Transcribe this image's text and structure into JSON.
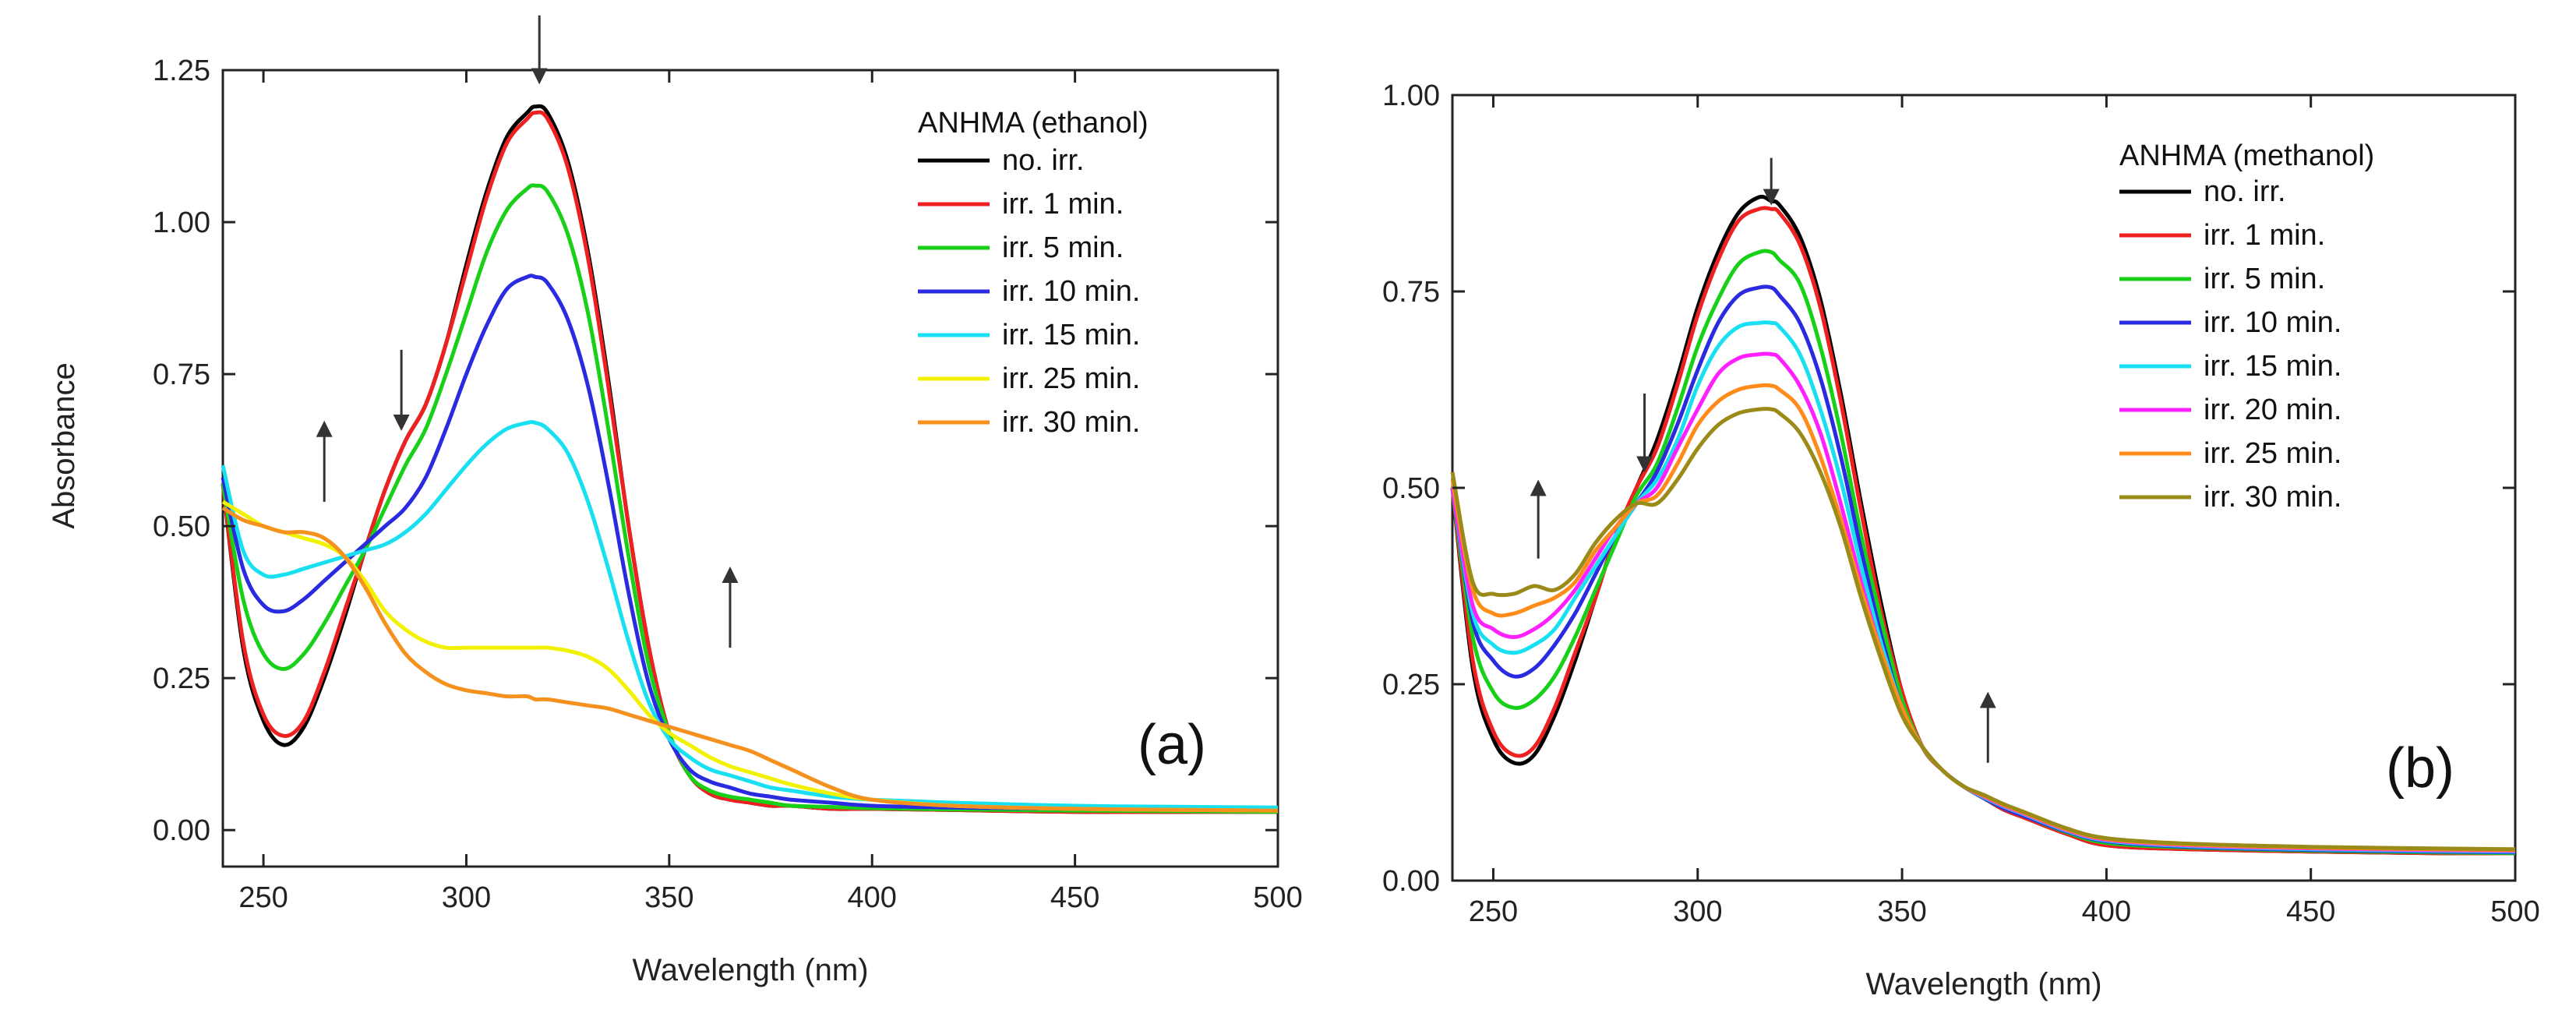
{
  "colors": {
    "no_irr": "#000000",
    "irr_1": "#ee2020",
    "irr_5": "#18d018",
    "irr_10": "#2a2ae0",
    "irr_15": "#18e0f0",
    "irr_20": "#ff20ff",
    "irr_25_a": "#f2f200",
    "irr_25_b": "#ff8c1a",
    "irr_30_a": "#f5911e",
    "irr_30_b": "#9a8a18",
    "arrow": "#333333"
  },
  "chart_data": [
    {
      "type": "line",
      "panel_label": "(a)",
      "legend_title": "ANHMA (ethanol)",
      "xlabel": "Wavelength (nm)",
      "ylabel": "Absorbance",
      "xlim": [
        240,
        500
      ],
      "ylim": [
        -0.06,
        1.25
      ],
      "xticks": [
        250,
        300,
        350,
        400,
        450,
        500
      ],
      "yticks": [
        0.0,
        0.25,
        0.5,
        0.75,
        1.0,
        1.25
      ],
      "ytick_labels": [
        "0.00",
        "0.25",
        "0.50",
        "0.75",
        "1.00",
        "1.25"
      ],
      "x": [
        240,
        245,
        250,
        255,
        260,
        265,
        270,
        275,
        280,
        285,
        290,
        295,
        300,
        305,
        310,
        315,
        317,
        320,
        325,
        330,
        335,
        340,
        345,
        350,
        355,
        360,
        365,
        370,
        375,
        380,
        390,
        400,
        420,
        450,
        480,
        500
      ],
      "series": [
        {
          "name": "no. irr.",
          "color_key": "no_irr",
          "values": [
            0.57,
            0.3,
            0.18,
            0.14,
            0.17,
            0.25,
            0.35,
            0.46,
            0.56,
            0.64,
            0.7,
            0.8,
            0.93,
            1.05,
            1.14,
            1.18,
            1.19,
            1.18,
            1.1,
            0.95,
            0.74,
            0.5,
            0.3,
            0.16,
            0.09,
            0.06,
            0.05,
            0.045,
            0.04,
            0.04,
            0.035,
            0.035,
            0.033,
            0.03,
            0.03,
            0.03
          ]
        },
        {
          "name": "irr. 1 min.",
          "color_key": "irr_1",
          "values": [
            0.57,
            0.31,
            0.19,
            0.155,
            0.18,
            0.26,
            0.36,
            0.46,
            0.56,
            0.64,
            0.7,
            0.8,
            0.92,
            1.04,
            1.13,
            1.17,
            1.18,
            1.17,
            1.09,
            0.94,
            0.73,
            0.5,
            0.3,
            0.16,
            0.09,
            0.06,
            0.05,
            0.045,
            0.04,
            0.04,
            0.035,
            0.035,
            0.033,
            0.03,
            0.03,
            0.03
          ]
        },
        {
          "name": "irr. 5 min.",
          "color_key": "irr_5",
          "values": [
            0.57,
            0.38,
            0.29,
            0.265,
            0.29,
            0.34,
            0.4,
            0.46,
            0.53,
            0.6,
            0.66,
            0.75,
            0.85,
            0.95,
            1.02,
            1.055,
            1.06,
            1.05,
            0.98,
            0.85,
            0.66,
            0.45,
            0.27,
            0.16,
            0.09,
            0.065,
            0.055,
            0.05,
            0.045,
            0.04,
            0.038,
            0.036,
            0.034,
            0.032,
            0.031,
            0.03
          ]
        },
        {
          "name": "irr. 10 min.",
          "color_key": "irr_10",
          "values": [
            0.58,
            0.43,
            0.37,
            0.36,
            0.38,
            0.41,
            0.44,
            0.47,
            0.5,
            0.53,
            0.58,
            0.66,
            0.75,
            0.83,
            0.89,
            0.91,
            0.91,
            0.9,
            0.84,
            0.73,
            0.57,
            0.39,
            0.24,
            0.15,
            0.1,
            0.08,
            0.07,
            0.06,
            0.055,
            0.05,
            0.045,
            0.04,
            0.037,
            0.035,
            0.033,
            0.033
          ]
        },
        {
          "name": "irr. 15 min.",
          "color_key": "irr_15",
          "values": [
            0.6,
            0.46,
            0.42,
            0.42,
            0.43,
            0.44,
            0.45,
            0.46,
            0.47,
            0.49,
            0.52,
            0.56,
            0.6,
            0.635,
            0.66,
            0.67,
            0.67,
            0.66,
            0.62,
            0.54,
            0.43,
            0.31,
            0.21,
            0.15,
            0.12,
            0.1,
            0.09,
            0.08,
            0.07,
            0.065,
            0.055,
            0.05,
            0.045,
            0.04,
            0.038,
            0.037
          ]
        },
        {
          "name": "irr. 25 min.",
          "color_key": "irr_25_a",
          "values": [
            0.54,
            0.52,
            0.5,
            0.49,
            0.48,
            0.47,
            0.45,
            0.41,
            0.36,
            0.33,
            0.31,
            0.3,
            0.3,
            0.3,
            0.3,
            0.3,
            0.3,
            0.3,
            0.295,
            0.285,
            0.265,
            0.23,
            0.19,
            0.16,
            0.14,
            0.12,
            0.105,
            0.095,
            0.085,
            0.075,
            0.06,
            0.05,
            0.04,
            0.035,
            0.033,
            0.032
          ]
        },
        {
          "name": "irr. 30 min.",
          "color_key": "irr_30_a",
          "values": [
            0.53,
            0.51,
            0.5,
            0.49,
            0.49,
            0.48,
            0.45,
            0.4,
            0.34,
            0.29,
            0.26,
            0.24,
            0.23,
            0.225,
            0.22,
            0.22,
            0.215,
            0.215,
            0.21,
            0.205,
            0.2,
            0.19,
            0.18,
            0.17,
            0.16,
            0.15,
            0.14,
            0.13,
            0.115,
            0.1,
            0.07,
            0.05,
            0.04,
            0.035,
            0.033,
            0.032
          ]
        }
      ],
      "arrows": [
        {
          "x": 318,
          "y_from": 1.34,
          "y_to": 1.24,
          "dir": "down"
        },
        {
          "x": 284,
          "y_from": 0.79,
          "y_to": 0.67,
          "dir": "down"
        },
        {
          "x": 265,
          "y_from": 0.54,
          "y_to": 0.66,
          "dir": "up"
        },
        {
          "x": 365,
          "y_from": 0.3,
          "y_to": 0.42,
          "dir": "up"
        }
      ]
    },
    {
      "type": "line",
      "panel_label": "(b)",
      "legend_title": "ANHMA (methanol)",
      "xlabel": "Wavelength (nm)",
      "ylabel": "",
      "xlim": [
        240,
        500
      ],
      "ylim": [
        0.0,
        1.0
      ],
      "xticks": [
        250,
        300,
        350,
        400,
        450,
        500
      ],
      "yticks": [
        0.0,
        0.25,
        0.5,
        0.75,
        1.0
      ],
      "ytick_labels": [
        "0.00",
        "0.25",
        "0.50",
        "0.75",
        "1.00"
      ],
      "x": [
        240,
        245,
        250,
        255,
        260,
        265,
        270,
        275,
        280,
        285,
        290,
        295,
        300,
        305,
        310,
        315,
        318,
        320,
        325,
        330,
        335,
        340,
        345,
        350,
        355,
        360,
        365,
        370,
        375,
        380,
        390,
        400,
        420,
        450,
        480,
        500
      ],
      "series": [
        {
          "name": "no. irr.",
          "color_key": "no_irr",
          "values": [
            0.5,
            0.27,
            0.18,
            0.15,
            0.16,
            0.21,
            0.28,
            0.36,
            0.44,
            0.5,
            0.56,
            0.64,
            0.73,
            0.8,
            0.85,
            0.87,
            0.865,
            0.86,
            0.82,
            0.74,
            0.62,
            0.48,
            0.35,
            0.24,
            0.17,
            0.14,
            0.12,
            0.105,
            0.09,
            0.08,
            0.06,
            0.045,
            0.04,
            0.037,
            0.035,
            0.035
          ]
        },
        {
          "name": "irr. 1 min.",
          "color_key": "irr_1",
          "values": [
            0.5,
            0.28,
            0.19,
            0.16,
            0.17,
            0.22,
            0.29,
            0.36,
            0.44,
            0.5,
            0.55,
            0.63,
            0.72,
            0.79,
            0.84,
            0.855,
            0.855,
            0.85,
            0.81,
            0.73,
            0.61,
            0.47,
            0.34,
            0.24,
            0.17,
            0.14,
            0.12,
            0.105,
            0.09,
            0.08,
            0.06,
            0.045,
            0.04,
            0.037,
            0.035,
            0.035
          ]
        },
        {
          "name": "irr. 5 min.",
          "color_key": "irr_5",
          "values": [
            0.5,
            0.31,
            0.24,
            0.22,
            0.23,
            0.26,
            0.31,
            0.37,
            0.43,
            0.49,
            0.53,
            0.6,
            0.68,
            0.74,
            0.785,
            0.8,
            0.8,
            0.79,
            0.76,
            0.68,
            0.57,
            0.44,
            0.33,
            0.23,
            0.17,
            0.14,
            0.12,
            0.105,
            0.092,
            0.082,
            0.062,
            0.048,
            0.042,
            0.038,
            0.036,
            0.035
          ]
        },
        {
          "name": "irr. 10 min.",
          "color_key": "irr_10",
          "values": [
            0.5,
            0.33,
            0.28,
            0.26,
            0.27,
            0.3,
            0.34,
            0.39,
            0.44,
            0.48,
            0.52,
            0.58,
            0.65,
            0.71,
            0.745,
            0.755,
            0.755,
            0.745,
            0.71,
            0.64,
            0.54,
            0.42,
            0.31,
            0.22,
            0.17,
            0.14,
            0.12,
            0.105,
            0.092,
            0.082,
            0.063,
            0.05,
            0.043,
            0.039,
            0.037,
            0.036
          ]
        },
        {
          "name": "irr. 15 min.",
          "color_key": "irr_15",
          "values": [
            0.5,
            0.34,
            0.3,
            0.29,
            0.3,
            0.32,
            0.36,
            0.4,
            0.44,
            0.48,
            0.51,
            0.56,
            0.63,
            0.68,
            0.705,
            0.71,
            0.71,
            0.705,
            0.67,
            0.6,
            0.51,
            0.4,
            0.3,
            0.22,
            0.17,
            0.14,
            0.12,
            0.106,
            0.094,
            0.084,
            0.064,
            0.051,
            0.044,
            0.04,
            0.038,
            0.037
          ]
        },
        {
          "name": "irr. 20 min.",
          "color_key": "irr_20",
          "values": [
            0.5,
            0.35,
            0.32,
            0.31,
            0.32,
            0.34,
            0.37,
            0.41,
            0.45,
            0.48,
            0.5,
            0.55,
            0.6,
            0.645,
            0.665,
            0.67,
            0.67,
            0.665,
            0.63,
            0.57,
            0.48,
            0.38,
            0.29,
            0.22,
            0.17,
            0.14,
            0.12,
            0.107,
            0.095,
            0.085,
            0.065,
            0.052,
            0.045,
            0.041,
            0.039,
            0.038
          ]
        },
        {
          "name": "irr. 25 min.",
          "color_key": "irr_25_b",
          "values": [
            0.51,
            0.37,
            0.34,
            0.34,
            0.35,
            0.36,
            0.38,
            0.42,
            0.45,
            0.48,
            0.49,
            0.53,
            0.58,
            0.61,
            0.625,
            0.63,
            0.63,
            0.625,
            0.6,
            0.54,
            0.46,
            0.37,
            0.29,
            0.22,
            0.17,
            0.14,
            0.12,
            0.108,
            0.096,
            0.086,
            0.066,
            0.053,
            0.046,
            0.042,
            0.04,
            0.039
          ]
        },
        {
          "name": "irr. 30 min.",
          "color_key": "irr_30_b",
          "values": [
            0.52,
            0.38,
            0.365,
            0.365,
            0.375,
            0.37,
            0.39,
            0.43,
            0.46,
            0.48,
            0.48,
            0.51,
            0.55,
            0.58,
            0.595,
            0.6,
            0.6,
            0.595,
            0.57,
            0.52,
            0.45,
            0.36,
            0.28,
            0.21,
            0.17,
            0.14,
            0.12,
            0.109,
            0.097,
            0.087,
            0.067,
            0.054,
            0.047,
            0.043,
            0.041,
            0.04
          ]
        }
      ],
      "arrows": [
        {
          "x": 318,
          "y_from": 0.92,
          "y_to": 0.87,
          "dir": "down"
        },
        {
          "x": 287,
          "y_from": 0.62,
          "y_to": 0.53,
          "dir": "down"
        },
        {
          "x": 261,
          "y_from": 0.41,
          "y_to": 0.5,
          "dir": "up"
        },
        {
          "x": 371,
          "y_from": 0.15,
          "y_to": 0.23,
          "dir": "up"
        }
      ]
    }
  ]
}
